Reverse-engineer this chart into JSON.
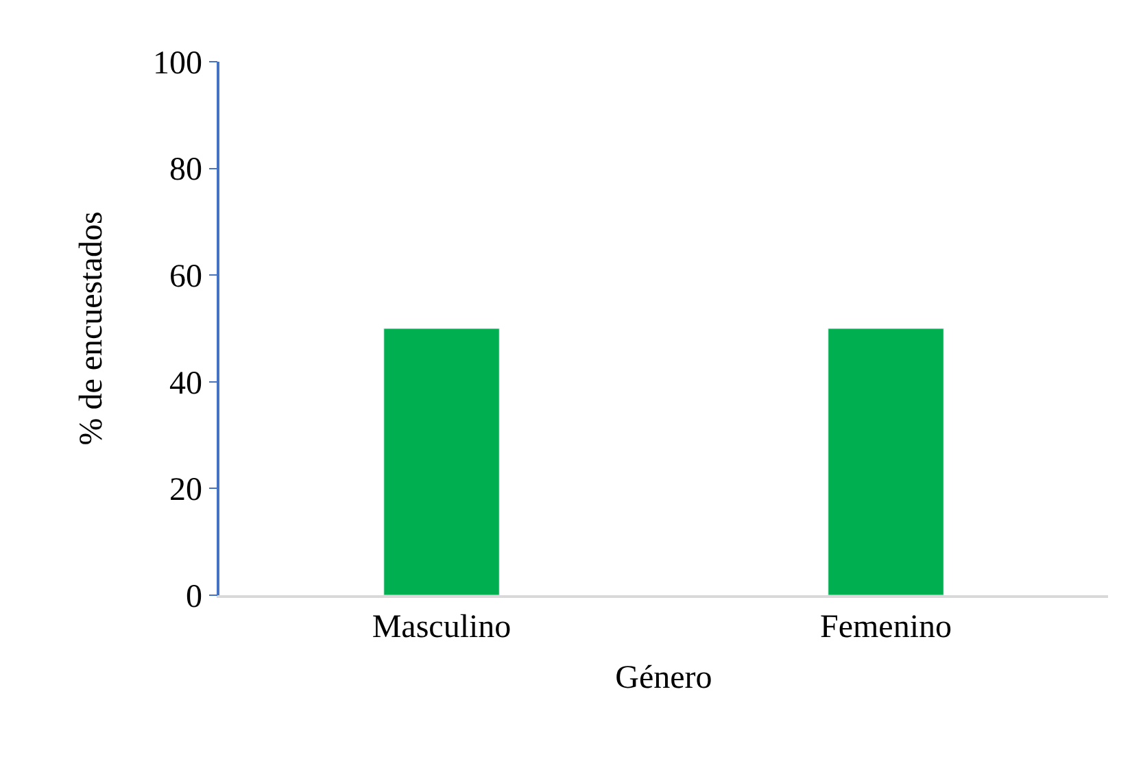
{
  "chart_data": {
    "type": "bar",
    "xlabel": "Género",
    "ylabel": "% de encuestados",
    "categories": [
      "Masculino",
      "Femenino"
    ],
    "series": [
      {
        "color": "#00b050",
        "values": [
          50,
          50
        ]
      }
    ],
    "ylim": [
      0,
      100
    ],
    "yticks": [
      0,
      20,
      40,
      60,
      80,
      100
    ]
  }
}
